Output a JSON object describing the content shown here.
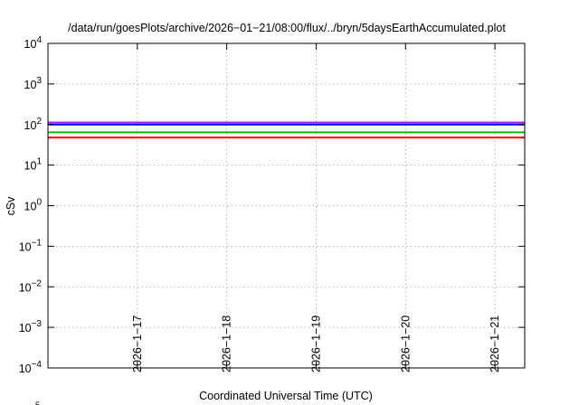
{
  "chart_data": {
    "type": "line",
    "title": "/data/run/goesPlots/archive/2026−01−21/08:00/flux/../bryn/5daysEarthAccumulated.plot",
    "xlabel": "Coordinated Universal Time (UTC)",
    "ylabel": "cSv",
    "y_scale": "log",
    "ylim": [
      0.0001,
      10000
    ],
    "xlim": [
      "2026-01-16",
      "2026-01-21T08:00"
    ],
    "grid": true,
    "y_ticks": [
      {
        "exp": "−4",
        "value": 0.0001
      },
      {
        "exp": "−3",
        "value": 0.001
      },
      {
        "exp": "−2",
        "value": 0.01
      },
      {
        "exp": "−1",
        "value": 0.1
      },
      {
        "exp": "0",
        "value": 1
      },
      {
        "exp": "1",
        "value": 10
      },
      {
        "exp": "2",
        "value": 100
      },
      {
        "exp": "3",
        "value": 1000
      },
      {
        "exp": "4",
        "value": 10000
      }
    ],
    "x_ticks": [
      {
        "label": "2026−1−17",
        "date": "2026-01-17"
      },
      {
        "label": "2026−1−18",
        "date": "2026-01-18"
      },
      {
        "label": "2026−1−19",
        "date": "2026-01-19"
      },
      {
        "label": "2026−1−20",
        "date": "2026-01-20"
      },
      {
        "label": "2026−1−21",
        "date": "2026-01-21"
      }
    ],
    "series": [
      {
        "color": "#a020f0",
        "x": [
          "2026-01-16",
          "2026-01-21T08:00"
        ],
        "y": [
          112,
          112
        ]
      },
      {
        "color": "#0000ff",
        "x": [
          "2026-01-16",
          "2026-01-21T08:00"
        ],
        "y": [
          100,
          100
        ]
      },
      {
        "color": "#00c000",
        "x": [
          "2026-01-16",
          "2026-01-21T08:00"
        ],
        "y": [
          64,
          64
        ]
      },
      {
        "color": "#ff0000",
        "x": [
          "2026-01-16",
          "2026-01-21T08:00"
        ],
        "y": [
          48,
          48
        ]
      }
    ],
    "corner_mark": "5"
  }
}
